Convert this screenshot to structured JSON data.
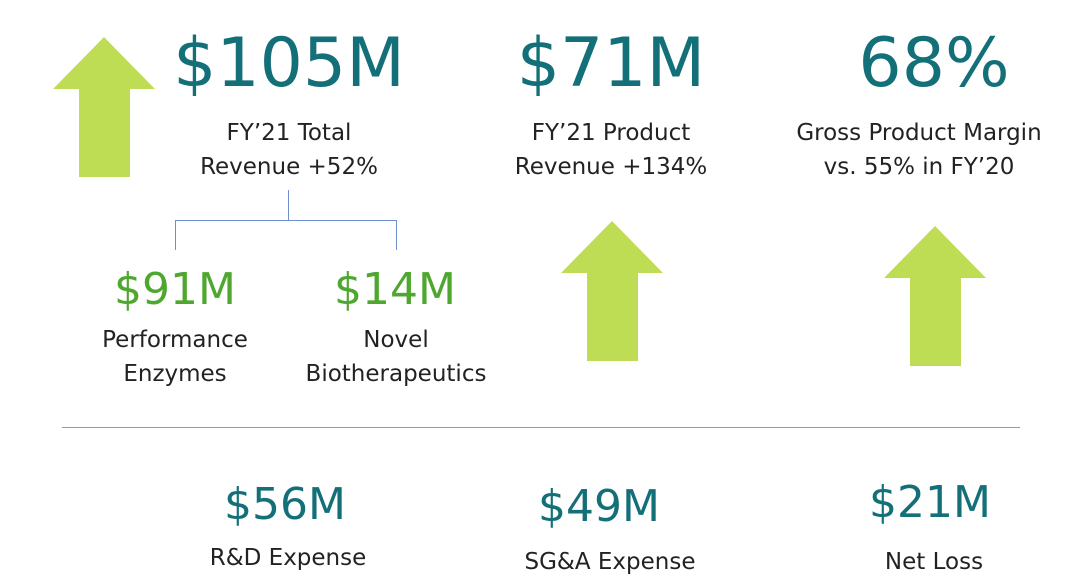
{
  "colors": {
    "teal": "#136f78",
    "green_text": "#4ea72e",
    "arrow": "#bedd55"
  },
  "top": [
    {
      "value": "$105M",
      "label1": "FY’21 Total",
      "label2": "Revenue +52%"
    },
    {
      "value": "$71M",
      "label1": "FY’21 Product",
      "label2": "Revenue +134%"
    },
    {
      "value": "68%",
      "label1": "Gross Product Margin",
      "label2": "vs. 55% in FY’20"
    }
  ],
  "breakdown": [
    {
      "value": "$91M",
      "label1": "Performance",
      "label2": "Enzymes"
    },
    {
      "value": "$14M",
      "label1": "Novel",
      "label2": "Biotherapeutics"
    }
  ],
  "bottom": [
    {
      "value": "$56M",
      "label": "R&D Expense"
    },
    {
      "value": "$49M",
      "label": "SG&A Expense"
    },
    {
      "value": "$21M",
      "label": "Net Loss"
    }
  ]
}
